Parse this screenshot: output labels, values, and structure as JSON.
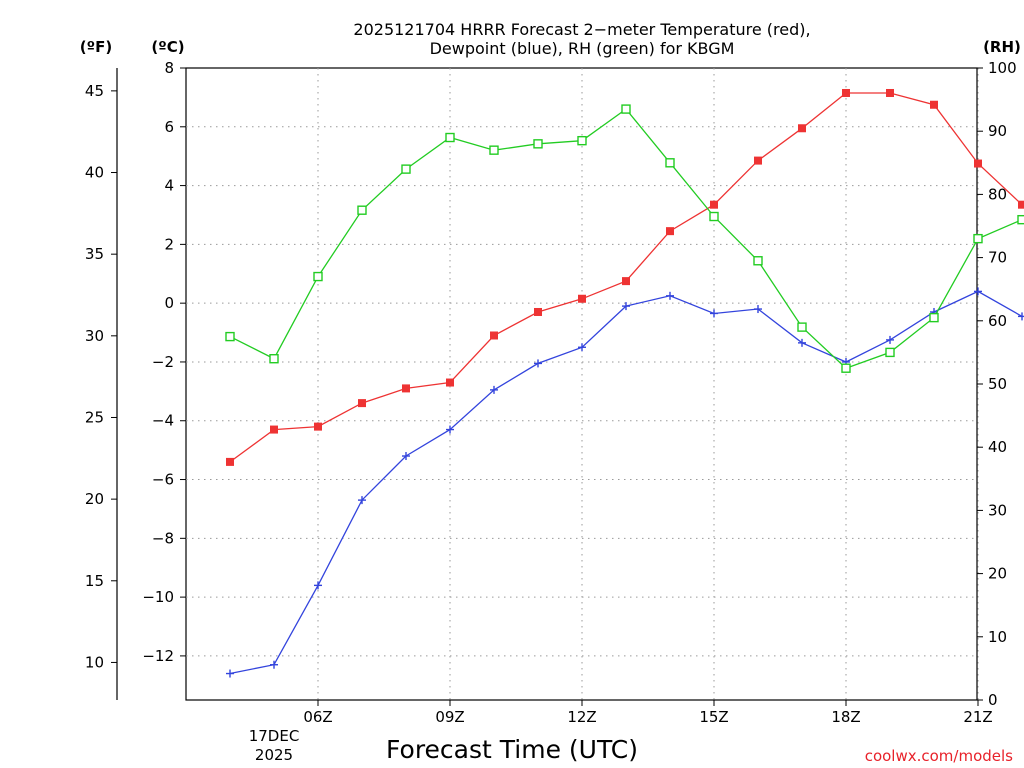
{
  "chart_data": {
    "type": "line",
    "title_line1": "2025121704 HRRR Forecast 2−meter Temperature (red),",
    "title_line2": "Dewpoint (blue), RH (green) for KBGM",
    "xlabel": "Forecast Time (UTC)",
    "date_label": [
      "17DEC",
      "2025"
    ],
    "credit": "coolwx.com/models",
    "units": {
      "fahrenheit": "(ºF)",
      "celsius": "(ºC)",
      "rh": "(RH)"
    },
    "x_range_hours": [
      3,
      21
    ],
    "x_ticks": [
      {
        "hour": 6,
        "label": "06Z"
      },
      {
        "hour": 9,
        "label": "09Z"
      },
      {
        "hour": 12,
        "label": "12Z"
      },
      {
        "hour": 15,
        "label": "15Z"
      },
      {
        "hour": 18,
        "label": "18Z"
      },
      {
        "hour": 21,
        "label": "21Z"
      }
    ],
    "ylim_c": [
      -13.5,
      8
    ],
    "ylim_rh": [
      0,
      100
    ],
    "y_ticks_c": [
      8,
      6,
      4,
      2,
      0,
      -2,
      -4,
      -6,
      -8,
      -10,
      -12
    ],
    "y_ticks_f": [
      45,
      40,
      35,
      30,
      25,
      20,
      15,
      10
    ],
    "y_ticks_rh": [
      100,
      90,
      80,
      70,
      60,
      50,
      40,
      30,
      20,
      10,
      0
    ],
    "hours": [
      4,
      5,
      6,
      7,
      8,
      9,
      10,
      11,
      12,
      13,
      14,
      15,
      16,
      17,
      18,
      19,
      20,
      21,
      22
    ],
    "series": [
      {
        "name": "Temperature",
        "axis": "c",
        "color": "#ee3333",
        "marker": "filled-square",
        "values": [
          -5.4,
          -4.3,
          -4.2,
          -3.4,
          -2.9,
          -2.7,
          -1.1,
          -0.3,
          0.15,
          0.75,
          2.45,
          3.35,
          4.85,
          5.95,
          7.15,
          7.15,
          6.75,
          4.75,
          3.35
        ]
      },
      {
        "name": "Dewpoint",
        "axis": "c",
        "color": "#3344dd",
        "marker": "plus",
        "values": [
          -12.6,
          -12.3,
          -9.6,
          -6.7,
          -5.2,
          -4.3,
          -2.95,
          -2.05,
          -1.5,
          -0.1,
          0.25,
          -0.35,
          -0.2,
          -1.35,
          -2.0,
          -1.25,
          -0.3,
          0.4,
          -0.45
        ]
      },
      {
        "name": "RH",
        "axis": "rh",
        "color": "#22cc22",
        "marker": "open-square",
        "values": [
          57.5,
          54,
          67,
          77.5,
          84,
          89,
          87,
          88,
          88.5,
          93.5,
          85,
          76.5,
          69.5,
          59,
          52.5,
          55,
          60.5,
          73,
          76
        ]
      }
    ]
  }
}
